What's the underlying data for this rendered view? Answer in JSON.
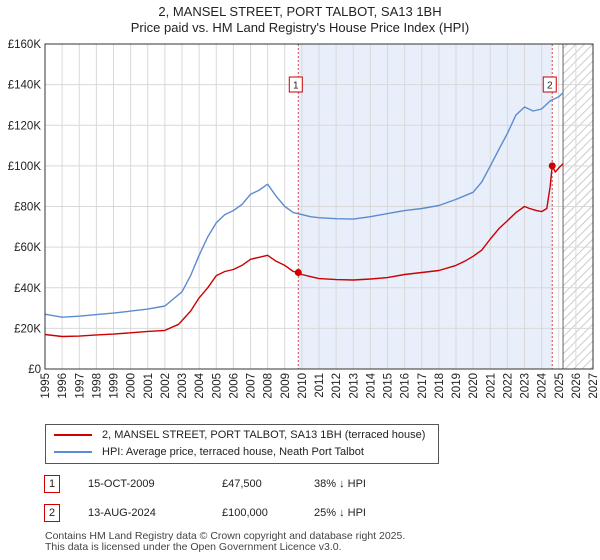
{
  "title_line1": "2, MANSEL STREET, PORT TALBOT, SA13 1BH",
  "title_line2": "Price paid vs. HM Land Registry's House Price Index (HPI)",
  "legend": [
    {
      "label": "2, MANSEL STREET, PORT TALBOT, SA13 1BH (terraced house)",
      "color": "#cc0000"
    },
    {
      "label": "HPI: Average price, terraced house, Neath Port Talbot",
      "color": "#5b8ccf"
    }
  ],
  "transactions": [
    {
      "num": "1",
      "date": "15-OCT-2009",
      "price": "£47,500",
      "hpi": "38% ↓ HPI"
    },
    {
      "num": "2",
      "date": "13-AUG-2024",
      "price": "£100,000",
      "hpi": "25% ↓ HPI"
    }
  ],
  "footer_line1": "Contains HM Land Registry data © Crown copyright and database right 2025.",
  "footer_line2": "This data is licensed under the Open Government Licence v3.0.",
  "colors": {
    "property": "#cc0000",
    "hpi": "#5b8ccf",
    "highlight": "#e8eefa",
    "grid": "#d9d9d9"
  },
  "chart_data": {
    "type": "line",
    "xlim": [
      1995,
      2027
    ],
    "ylim": [
      0,
      160000
    ],
    "x_ticks": [
      1995,
      1996,
      1997,
      1998,
      1999,
      2000,
      2001,
      2002,
      2003,
      2004,
      2005,
      2006,
      2007,
      2008,
      2009,
      2010,
      2011,
      2012,
      2013,
      2014,
      2015,
      2016,
      2017,
      2018,
      2019,
      2020,
      2021,
      2022,
      2023,
      2024,
      2025,
      2026,
      2027
    ],
    "y_ticks": [
      0,
      20000,
      40000,
      60000,
      80000,
      100000,
      120000,
      140000,
      160000
    ],
    "y_tick_labels": [
      "£0",
      "£20K",
      "£40K",
      "£60K",
      "£80K",
      "£100K",
      "£120K",
      "£140K",
      "£160K"
    ],
    "highlight_range": [
      2009.79,
      2024.62
    ],
    "hatch_from": 2025.25,
    "series": [
      {
        "name": "2, MANSEL STREET, PORT TALBOT, SA13 1BH (terraced house)",
        "x": [
          1995,
          1996,
          1997,
          1998,
          1999,
          2000,
          2001,
          2002,
          2002.8,
          2003.5,
          2004,
          2004.5,
          2005,
          2005.5,
          2006,
          2006.5,
          2007,
          2007.5,
          2008,
          2008.5,
          2009,
          2009.5,
          2009.79,
          2010,
          2010.5,
          2011,
          2012,
          2013,
          2014,
          2015,
          2016,
          2017,
          2018,
          2019,
          2019.5,
          2020,
          2020.5,
          2021,
          2021.5,
          2022,
          2022.5,
          2023,
          2023.3,
          2023.7,
          2024,
          2024.3,
          2024.5,
          2024.62,
          2024.8,
          2025,
          2025.25
        ],
        "y": [
          17000,
          16000,
          16200,
          16800,
          17200,
          17800,
          18500,
          19000,
          22000,
          28500,
          35000,
          40000,
          46000,
          48000,
          49000,
          51000,
          54000,
          55000,
          56000,
          53000,
          51000,
          48000,
          47500,
          46500,
          45500,
          44500,
          44000,
          43800,
          44300,
          45000,
          46500,
          47500,
          48500,
          51000,
          53000,
          55500,
          58500,
          64000,
          69000,
          73000,
          77000,
          80000,
          79000,
          78000,
          77500,
          79000,
          90000,
          100000,
          97000,
          99000,
          101000
        ]
      },
      {
        "name": "HPI: Average price, terraced house, Neath Port Talbot",
        "x": [
          1995,
          1996,
          1997,
          1998,
          1999,
          2000,
          2001,
          2002,
          2003,
          2003.5,
          2004,
          2004.5,
          2005,
          2005.5,
          2006,
          2006.5,
          2007,
          2007.5,
          2008,
          2008.5,
          2009,
          2009.5,
          2010,
          2010.5,
          2011,
          2012,
          2013,
          2014,
          2015,
          2016,
          2017,
          2018,
          2019,
          2020,
          2020.5,
          2021,
          2021.5,
          2022,
          2022.5,
          2023,
          2023.5,
          2024,
          2024.5,
          2025,
          2025.25
        ],
        "y": [
          27000,
          25500,
          26000,
          26800,
          27500,
          28500,
          29500,
          31000,
          38000,
          46000,
          56000,
          65000,
          72000,
          76000,
          78000,
          81000,
          86000,
          88000,
          91000,
          85000,
          80000,
          77000,
          76000,
          75000,
          74500,
          74000,
          73800,
          75000,
          76500,
          78000,
          79000,
          80500,
          83500,
          87000,
          92000,
          100000,
          108000,
          116000,
          125000,
          129000,
          127000,
          128000,
          132000,
          134000,
          136000
        ]
      }
    ],
    "markers": [
      {
        "label": "1",
        "x": 2009.79,
        "y": 47500
      },
      {
        "label": "2",
        "x": 2024.62,
        "y": 100000
      }
    ]
  }
}
